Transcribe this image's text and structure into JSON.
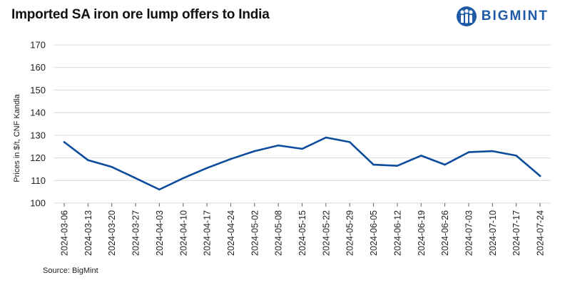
{
  "header": {
    "title": "Imported SA iron ore lump offers to India",
    "brand_name": "BIGMINT",
    "brand_color": "#1f5aa6"
  },
  "footer": {
    "source": "Source: BigMint"
  },
  "chart_data": {
    "type": "line",
    "title": "Imported SA iron ore lump offers to India",
    "xlabel": "",
    "ylabel": "Prices in $/t, CNF Kandla",
    "ylim": [
      100,
      170
    ],
    "yticks": [
      100,
      110,
      120,
      130,
      140,
      150,
      160,
      170
    ],
    "grid": true,
    "categories": [
      "2024-03-06",
      "2024-03-13",
      "2024-03-20",
      "2024-03-27",
      "2024-04-03",
      "2024-04-10",
      "2024-04-17",
      "2024-04-24",
      "2024-05-02",
      "2024-05-08",
      "2024-05-15",
      "2024-05-22",
      "2024-05-29",
      "2024-06-05",
      "2024-06-12",
      "2024-06-19",
      "2024-06-26",
      "2024-07-03",
      "2024-07-10",
      "2024-07-17",
      "2024-07-24"
    ],
    "series": [
      {
        "name": "Imported SA iron ore lump offers",
        "color": "#0d4c9c",
        "values": [
          127,
          119,
          116,
          111,
          106,
          111,
          115.5,
          119.5,
          123,
          125.5,
          124,
          129,
          127,
          117,
          116.5,
          121,
          117,
          122.5,
          123,
          121,
          112
        ]
      }
    ]
  }
}
